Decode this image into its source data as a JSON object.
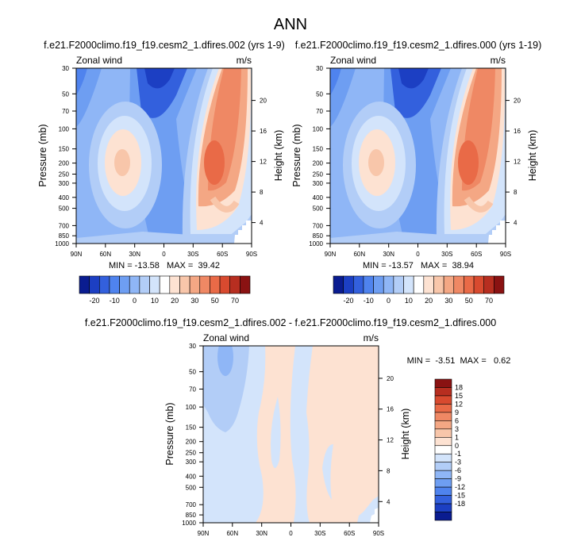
{
  "figure": {
    "title": "ANN",
    "panel_ids": [
      "p1",
      "p2",
      "p3"
    ]
  },
  "colorbar_top": {
    "colors": [
      "#0a1c90",
      "#1c3fc3",
      "#3360dd",
      "#4f83ee",
      "#6e9ef2",
      "#8fb6f6",
      "#b2cdf7",
      "#d3e4fb",
      "#ffffff",
      "#fde2d2",
      "#f8c6aa",
      "#f4a784",
      "#ef8864",
      "#e96a47",
      "#d84a2f",
      "#b72e20",
      "#8a1212"
    ],
    "tick_labels": [
      "-20",
      "-10",
      "0",
      "10",
      "20",
      "30",
      "50",
      "70"
    ]
  },
  "colorbar_diff": {
    "colors": [
      "#0a1c90",
      "#1c3fc3",
      "#3360dd",
      "#4f83ee",
      "#6e9ef2",
      "#8fb6f6",
      "#b2cdf7",
      "#d3e4fb",
      "#ffffff",
      "#fde2d2",
      "#f8c6aa",
      "#f4a784",
      "#ef8864",
      "#e96a47",
      "#d84a2f",
      "#b72e20",
      "#8a1212"
    ],
    "tick_labels": [
      "18",
      "15",
      "12",
      "9",
      "6",
      "3",
      "1",
      "0",
      "-1",
      "-3",
      "-6",
      "-9",
      "-12",
      "-15",
      "-18"
    ]
  },
  "chart_data": [
    {
      "id": "p1",
      "type": "contour",
      "title": "f.e21.F2000climo.f19_f19.cesm2_1.dfires.002 (yrs 1-9)",
      "variable_label": "Zonal wind",
      "units_label": "m/s",
      "ylabel": "Pressure (mb)",
      "ylabel_right": "Height (km)",
      "x_ticks": [
        "90N",
        "60N",
        "30N",
        "0",
        "30S",
        "60S",
        "90S"
      ],
      "pressure_ticks": [
        "30",
        "50",
        "70",
        "100",
        "150",
        "200",
        "250",
        "300",
        "400",
        "500",
        "700",
        "850",
        "1000"
      ],
      "height_ticks": [
        "20",
        "16",
        "12",
        "8",
        "4"
      ],
      "stats_text": "MIN = -13.58   MAX =  39.42",
      "min": -13.58,
      "max": 39.42,
      "ylim_mb": [
        1000,
        30
      ],
      "xlim_deg": [
        90,
        -90
      ]
    },
    {
      "id": "p2",
      "type": "contour",
      "title": "f.e21.F2000climo.f19_f19.cesm2_1.dfires.000 (yrs 1-19)",
      "variable_label": "Zonal wind",
      "units_label": "m/s",
      "ylabel": "Pressure (mb)",
      "ylabel_right": "Height (km)",
      "x_ticks": [
        "90N",
        "60N",
        "30N",
        "0",
        "30S",
        "60S",
        "90S"
      ],
      "pressure_ticks": [
        "30",
        "50",
        "70",
        "100",
        "150",
        "200",
        "250",
        "300",
        "400",
        "500",
        "700",
        "850",
        "1000"
      ],
      "height_ticks": [
        "20",
        "16",
        "12",
        "8",
        "4"
      ],
      "stats_text": "MIN = -13.57   MAX =  38.94",
      "min": -13.57,
      "max": 38.94,
      "ylim_mb": [
        1000,
        30
      ],
      "xlim_deg": [
        90,
        -90
      ]
    },
    {
      "id": "p3",
      "type": "contour",
      "title": "f.e21.F2000climo.f19_f19.cesm2_1.dfires.002 - f.e21.F2000climo.f19_f19.cesm2_1.dfires.000",
      "variable_label": "Zonal wind",
      "units_label": "m/s",
      "ylabel": "Pressure (mb)",
      "ylabel_right": "Height (km)",
      "x_ticks": [
        "90N",
        "60N",
        "30N",
        "0",
        "30S",
        "60S",
        "90S"
      ],
      "pressure_ticks": [
        "30",
        "50",
        "70",
        "100",
        "150",
        "200",
        "250",
        "300",
        "400",
        "500",
        "700",
        "850",
        "1000"
      ],
      "height_ticks": [
        "20",
        "16",
        "12",
        "8",
        "4"
      ],
      "stats_text": "MIN =  -3.51  MAX =   0.62",
      "min": -3.51,
      "max": 0.62,
      "ylim_mb": [
        1000,
        30
      ],
      "xlim_deg": [
        90,
        -90
      ]
    }
  ]
}
